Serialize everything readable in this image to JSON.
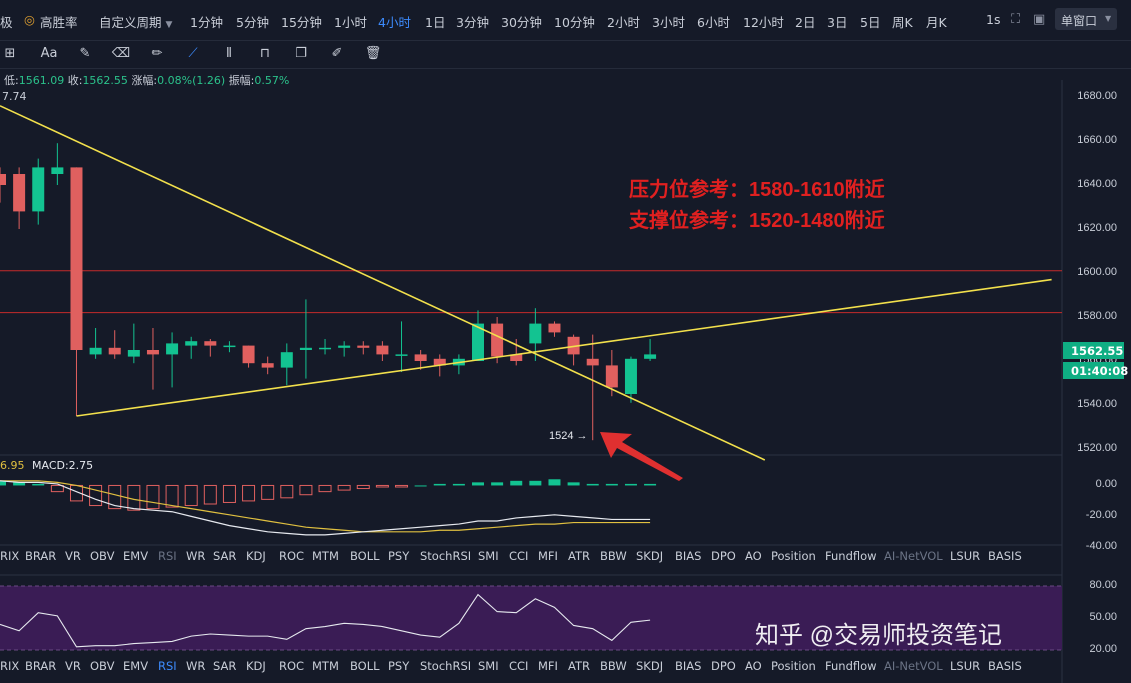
{
  "topbar": {
    "cut_label": "极",
    "gaoshenglv": "高胜率",
    "custom_period": "自定义周期",
    "timeframes": [
      "1分钟",
      "5分钟",
      "15分钟",
      "1小时",
      "4小时",
      "1日",
      "3分钟",
      "30分钟",
      "10分钟",
      "2小时",
      "3小时",
      "6小时",
      "12小时",
      "2日",
      "3日",
      "5日",
      "周K",
      "月K"
    ],
    "active_timeframe": "4小时",
    "refresh": "1s",
    "window_mode": "单窗口"
  },
  "toolbar": {
    "tools": [
      "crosshair-icon",
      "text-aa-icon",
      "brush-icon",
      "eraser-icon",
      "pencil-icon",
      "trendline-icon",
      "candles-icon",
      "trash-like-icon",
      "copy-icon",
      "edit-icon",
      "delete-icon"
    ],
    "text_tool_label": "Aa"
  },
  "info": {
    "high_cut": "7.74",
    "low_label": "低:",
    "low": "1561.09",
    "close_label": "收:",
    "close": "1562.55",
    "change_label": "涨幅:",
    "change": "0.08%(1.26)",
    "amp_label": "振幅:",
    "amp": "0.57%"
  },
  "price_axis": {
    "ticks": [
      "1680.00",
      "1660.00",
      "1640.00",
      "1620.00",
      "1600.00",
      "1580.00",
      "1560.00",
      "1540.00",
      "1520.00"
    ],
    "current_price": "1562.55",
    "countdown": "01:40:08",
    "accent": "#0fae83"
  },
  "annotations": {
    "resistance": "压力位参考：1580-1610附近",
    "support": "支撑位参考：1520-1480附近",
    "low_marker": "1524 →",
    "color": "#e02020"
  },
  "macd": {
    "prefix": "6.95",
    "label": "MACD:2.75",
    "ticks": [
      "0.00",
      "-20.00",
      "-40.00"
    ]
  },
  "rsi": {
    "ticks": [
      "80.00",
      "50.00",
      "20.00"
    ]
  },
  "indicator_tabs": [
    "RIX",
    "BRAR",
    "VR",
    "OBV",
    "EMV",
    "RSI",
    "WR",
    "SAR",
    "KDJ",
    "ROC",
    "MTM",
    "BOLL",
    "PSY",
    "StochRSI",
    "SMI",
    "CCI",
    "MFI",
    "ATR",
    "BBW",
    "SKDJ",
    "BIAS",
    "DPO",
    "AO",
    "Position",
    "Fundflow",
    "AI-NetVOL",
    "LSUR",
    "BASIS"
  ],
  "watermark": "知乎 @交易师投资笔记",
  "chart_data": {
    "type": "candlestick",
    "ylim": [
      1515,
      1685
    ],
    "candles": [
      {
        "o": 1645,
        "h": 1648,
        "l": 1632,
        "c": 1640
      },
      {
        "o": 1645,
        "h": 1648,
        "l": 1620,
        "c": 1628
      },
      {
        "o": 1628,
        "h": 1652,
        "l": 1622,
        "c": 1648
      },
      {
        "o": 1645,
        "h": 1659,
        "l": 1640,
        "c": 1648
      },
      {
        "o": 1648,
        "h": 1648,
        "l": 1535,
        "c": 1565
      },
      {
        "o": 1563,
        "h": 1575,
        "l": 1561,
        "c": 1566
      },
      {
        "o": 1566,
        "h": 1574,
        "l": 1561,
        "c": 1563
      },
      {
        "o": 1562,
        "h": 1577,
        "l": 1559,
        "c": 1565
      },
      {
        "o": 1565,
        "h": 1575,
        "l": 1547,
        "c": 1563
      },
      {
        "o": 1563,
        "h": 1573,
        "l": 1548,
        "c": 1568
      },
      {
        "o": 1567,
        "h": 1571,
        "l": 1561,
        "c": 1569
      },
      {
        "o": 1569,
        "h": 1570,
        "l": 1562,
        "c": 1567
      },
      {
        "o": 1567,
        "h": 1569,
        "l": 1564,
        "c": 1567
      },
      {
        "o": 1567,
        "h": 1567,
        "l": 1557,
        "c": 1559
      },
      {
        "o": 1559,
        "h": 1562,
        "l": 1554,
        "c": 1557
      },
      {
        "o": 1557,
        "h": 1568,
        "l": 1549,
        "c": 1564
      },
      {
        "o": 1565,
        "h": 1588,
        "l": 1552,
        "c": 1566
      },
      {
        "o": 1566,
        "h": 1570,
        "l": 1563,
        "c": 1566
      },
      {
        "o": 1566,
        "h": 1569,
        "l": 1562,
        "c": 1567
      },
      {
        "o": 1567,
        "h": 1569,
        "l": 1563,
        "c": 1566
      },
      {
        "o": 1567,
        "h": 1569,
        "l": 1560,
        "c": 1563
      },
      {
        "o": 1563,
        "h": 1578,
        "l": 1555,
        "c": 1563
      },
      {
        "o": 1563,
        "h": 1565,
        "l": 1556,
        "c": 1560
      },
      {
        "o": 1561,
        "h": 1563,
        "l": 1553,
        "c": 1558
      },
      {
        "o": 1558,
        "h": 1563,
        "l": 1554,
        "c": 1561
      },
      {
        "o": 1560,
        "h": 1583,
        "l": 1560,
        "c": 1577
      },
      {
        "o": 1577,
        "h": 1580,
        "l": 1559,
        "c": 1562
      },
      {
        "o": 1563,
        "h": 1570,
        "l": 1558,
        "c": 1560
      },
      {
        "o": 1568,
        "h": 1584,
        "l": 1560,
        "c": 1577
      },
      {
        "o": 1577,
        "h": 1578,
        "l": 1571,
        "c": 1573
      },
      {
        "o": 1571,
        "h": 1572,
        "l": 1558,
        "c": 1563
      },
      {
        "o": 1561,
        "h": 1572,
        "l": 1524,
        "c": 1558
      },
      {
        "o": 1558,
        "h": 1565,
        "l": 1544,
        "c": 1548
      },
      {
        "o": 1545,
        "h": 1562,
        "l": 1541,
        "c": 1561
      },
      {
        "o": 1561,
        "h": 1570,
        "l": 1560,
        "c": 1563
      }
    ],
    "horizontal_lines": [
      1601,
      1582
    ],
    "trend_lines": [
      {
        "from": [
          0,
          1676
        ],
        "to": [
          40,
          1515
        ]
      },
      {
        "from": [
          4,
          1535
        ],
        "to": [
          55,
          1597
        ]
      }
    ],
    "macd_hist": [
      3,
      2,
      1,
      -4,
      -10,
      -13,
      -15,
      -16,
      -15,
      -14,
      -13,
      -12,
      -11,
      -10,
      -9,
      -8,
      -6,
      -4,
      -3,
      -2,
      -1,
      -1,
      0,
      1,
      1,
      2,
      2,
      3,
      3,
      4,
      2,
      1,
      1,
      1,
      1
    ],
    "macd_line": [
      3,
      2,
      2,
      1,
      -4,
      -9,
      -13,
      -15,
      -16,
      -17,
      -20,
      -23,
      -26,
      -28,
      -30,
      -31,
      -32,
      -32,
      -31,
      -30,
      -29,
      -28,
      -27,
      -26,
      -25,
      -23,
      -23,
      -21,
      -20,
      -19,
      -20,
      -21,
      -22,
      -22,
      -22
    ],
    "signal_line": [
      3,
      3,
      3,
      2,
      0,
      -3,
      -6,
      -9,
      -11,
      -13,
      -15,
      -17,
      -19,
      -21,
      -23,
      -25,
      -27,
      -28,
      -29,
      -30,
      -30,
      -30,
      -30,
      -29,
      -29,
      -28,
      -27,
      -26,
      -25,
      -25,
      -24,
      -24,
      -24,
      -24,
      -24
    ],
    "rsi": [
      44,
      38,
      55,
      52,
      23,
      24,
      24,
      26,
      27,
      28,
      33,
      35,
      34,
      33,
      33,
      30,
      40,
      42,
      45,
      44,
      42,
      38,
      34,
      32,
      45,
      72,
      56,
      55,
      68,
      60,
      43,
      40,
      29,
      46,
      48
    ]
  }
}
